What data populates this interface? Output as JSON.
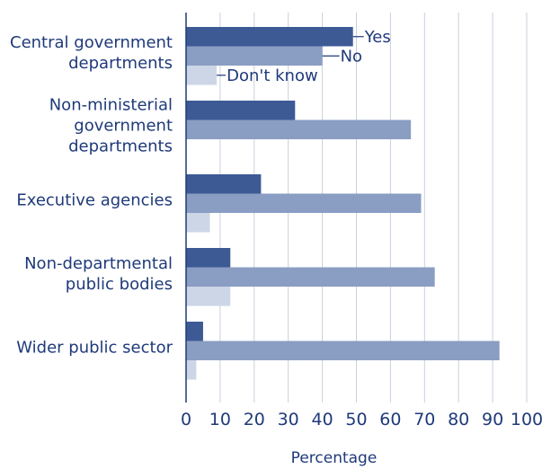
{
  "chart_data": {
    "type": "bar",
    "orientation": "horizontal",
    "categories": [
      [
        "Central government",
        "departments"
      ],
      [
        "Non-ministerial",
        "government",
        "departments"
      ],
      [
        "Executive agencies"
      ],
      [
        "Non-departmental",
        "public bodies"
      ],
      [
        "Wider public sector"
      ]
    ],
    "series": [
      {
        "name": "Yes",
        "color": "#3d5a95",
        "values": [
          49,
          32,
          22,
          13,
          5
        ]
      },
      {
        "name": "No",
        "color": "#8a9dc3",
        "values": [
          40,
          66,
          69,
          73,
          92
        ]
      },
      {
        "name": "Don't know",
        "color": "#cdd6e6",
        "values": [
          9,
          0,
          7,
          13,
          3
        ]
      }
    ],
    "xlim": [
      0,
      100
    ],
    "xticks": [
      0,
      10,
      20,
      30,
      40,
      50,
      60,
      70,
      80,
      90,
      100
    ],
    "xlabel": "Percentage",
    "grid": true,
    "legend": "inline-labels-first-group"
  }
}
